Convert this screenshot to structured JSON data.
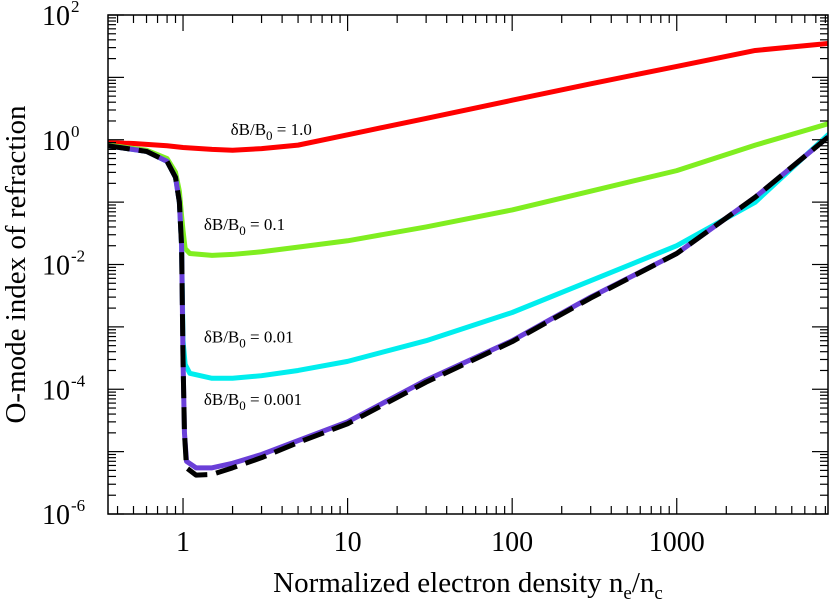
{
  "chart_data": {
    "type": "line",
    "xlabel_main": "Normalized electron density n",
    "xlabel_sub1": "e",
    "xlabel_mid": "/n",
    "xlabel_sub2": "c",
    "ylabel": "O-mode index of refraction",
    "x_scale": "log",
    "y_scale": "log",
    "xlim": [
      0.35,
      8300
    ],
    "ylim": [
      1e-06,
      100
    ],
    "x_ticks": [
      {
        "value": 1,
        "label": "1"
      },
      {
        "value": 10,
        "label": "10"
      },
      {
        "value": 100,
        "label": "100"
      },
      {
        "value": 1000,
        "label": "1000"
      }
    ],
    "y_ticks": [
      {
        "value": 1e-06,
        "base": "10",
        "exp": "-6"
      },
      {
        "value": 0.0001,
        "base": "10",
        "exp": "-4"
      },
      {
        "value": 0.01,
        "base": "10",
        "exp": "-2"
      },
      {
        "value": 1,
        "base": "10",
        "exp": "0"
      },
      {
        "value": 100,
        "base": "10",
        "exp": "2"
      }
    ],
    "grid": false,
    "series": [
      {
        "name": "δB/B0 = 1.0",
        "color": "#ff0000",
        "dash": "solid",
        "points": [
          [
            0.35,
            0.9
          ],
          [
            0.5,
            0.87
          ],
          [
            0.8,
            0.8
          ],
          [
            1.0,
            0.75
          ],
          [
            1.5,
            0.7
          ],
          [
            2.0,
            0.68
          ],
          [
            3,
            0.72
          ],
          [
            5,
            0.82
          ],
          [
            10,
            1.2
          ],
          [
            30,
            2.2
          ],
          [
            100,
            4.3
          ],
          [
            300,
            7.9
          ],
          [
            1000,
            15
          ],
          [
            3000,
            27
          ],
          [
            8300,
            35
          ]
        ]
      },
      {
        "name": "δB/B0 = 0.1",
        "color": "#80ee20",
        "dash": "solid",
        "points": [
          [
            0.35,
            0.82
          ],
          [
            0.6,
            0.68
          ],
          [
            0.8,
            0.5
          ],
          [
            0.9,
            0.3
          ],
          [
            0.95,
            0.15
          ],
          [
            0.98,
            0.06
          ],
          [
            1.0,
            0.035
          ],
          [
            1.03,
            0.018
          ],
          [
            1.1,
            0.015
          ],
          [
            1.5,
            0.014
          ],
          [
            2.0,
            0.0145
          ],
          [
            3,
            0.016
          ],
          [
            5,
            0.019
          ],
          [
            10,
            0.024
          ],
          [
            30,
            0.04
          ],
          [
            100,
            0.075
          ],
          [
            300,
            0.15
          ],
          [
            1000,
            0.32
          ],
          [
            3000,
            0.82
          ],
          [
            8300,
            1.8
          ]
        ]
      },
      {
        "name": "δB/B0 = 0.01",
        "color": "#00eeee",
        "dash": "solid",
        "points": [
          [
            0.35,
            0.8
          ],
          [
            0.6,
            0.65
          ],
          [
            0.8,
            0.45
          ],
          [
            0.9,
            0.25
          ],
          [
            0.95,
            0.1
          ],
          [
            0.98,
            0.02
          ],
          [
            1.0,
            0.0006
          ],
          [
            1.03,
            0.00025
          ],
          [
            1.1,
            0.00018
          ],
          [
            1.5,
            0.00015
          ],
          [
            2.0,
            0.00015
          ],
          [
            3,
            0.000165
          ],
          [
            5,
            0.0002
          ],
          [
            10,
            0.00028
          ],
          [
            30,
            0.0006
          ],
          [
            100,
            0.0017
          ],
          [
            300,
            0.0055
          ],
          [
            1000,
            0.02
          ],
          [
            3000,
            0.1
          ],
          [
            8300,
            1.2
          ]
        ]
      },
      {
        "name": "δB/B0 = 0.001",
        "color": "#6a3fd8",
        "dash": "solid",
        "points": [
          [
            0.35,
            0.8
          ],
          [
            0.6,
            0.65
          ],
          [
            0.8,
            0.45
          ],
          [
            0.9,
            0.25
          ],
          [
            0.95,
            0.1
          ],
          [
            0.98,
            0.02
          ],
          [
            1.0,
            0.0003
          ],
          [
            1.02,
            2e-05
          ],
          [
            1.05,
            7e-06
          ],
          [
            1.2,
            5.5e-06
          ],
          [
            1.5,
            5.5e-06
          ],
          [
            2.0,
            6.5e-06
          ],
          [
            3,
            9e-06
          ],
          [
            5,
            1.5e-05
          ],
          [
            10,
            3e-05
          ],
          [
            30,
            0.00014
          ],
          [
            100,
            0.0006
          ],
          [
            300,
            0.003
          ],
          [
            1000,
            0.015
          ],
          [
            3000,
            0.12
          ],
          [
            8300,
            1.1
          ]
        ]
      },
      {
        "name": "",
        "color": "#000000",
        "dash": "dashed",
        "points": [
          [
            0.35,
            0.8
          ],
          [
            0.6,
            0.65
          ],
          [
            0.8,
            0.45
          ],
          [
            0.9,
            0.25
          ],
          [
            0.95,
            0.1
          ],
          [
            0.98,
            0.02
          ],
          [
            1.0,
            0.0003
          ],
          [
            1.02,
            2e-05
          ],
          [
            1.05,
            5.5e-06
          ],
          [
            1.2,
            4.2e-06
          ],
          [
            1.5,
            4.3e-06
          ],
          [
            2.0,
            5.5e-06
          ],
          [
            3,
            8e-06
          ],
          [
            5,
            1.4e-05
          ],
          [
            10,
            2.8e-05
          ],
          [
            30,
            0.00013
          ],
          [
            100,
            0.00058
          ],
          [
            300,
            0.0029
          ],
          [
            1000,
            0.015
          ],
          [
            3000,
            0.12
          ],
          [
            8300,
            1.1
          ]
        ]
      }
    ],
    "annotations": [
      {
        "prefix": "δB/B",
        "sub": "0",
        "suffix": " = 1.0",
        "x": 1.6,
        "y": 1.5
      },
      {
        "prefix": "δB/B",
        "sub": "0",
        "suffix": " = 0.1",
        "x": 1.1,
        "y": 0.045
      },
      {
        "prefix": "δB/B",
        "sub": "0",
        "suffix": " = 0.01",
        "x": 1.1,
        "y": 0.0007
      },
      {
        "prefix": "δB/B",
        "sub": "0",
        "suffix": " = 0.001",
        "x": 1.1,
        "y": 7e-05
      }
    ]
  }
}
